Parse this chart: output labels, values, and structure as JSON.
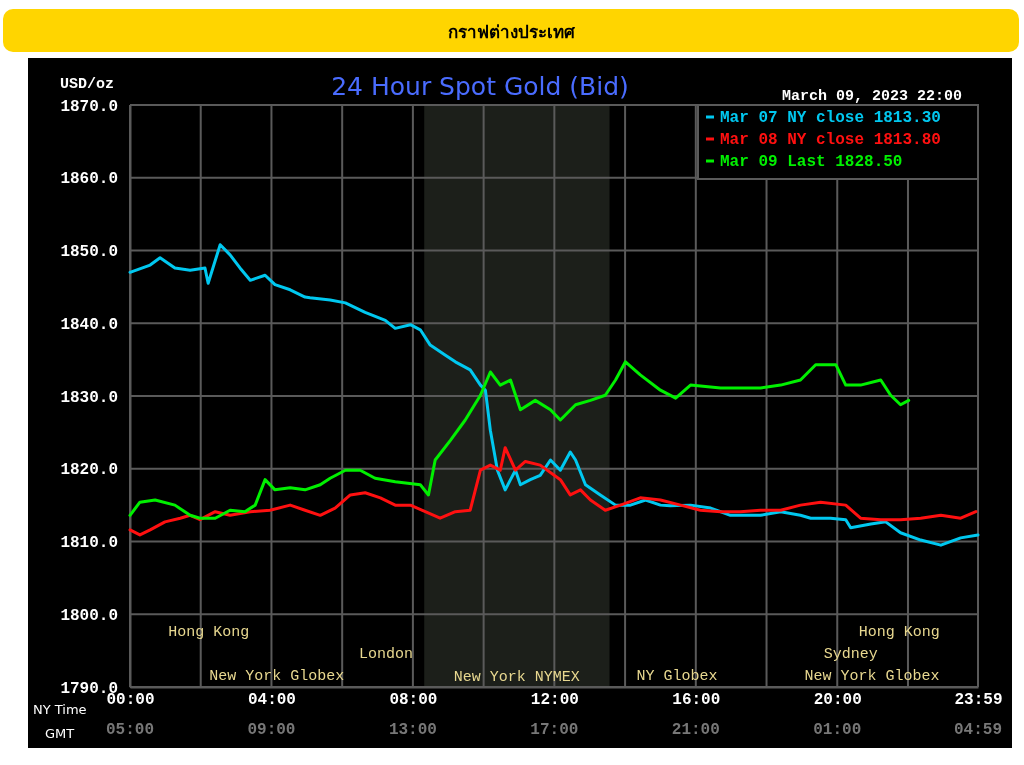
{
  "chart_data": {
    "type": "line",
    "title": "24 Hour Spot Gold (Bid)",
    "ylabel": "USD/oz",
    "xlabel": "NY Time",
    "x2label": "GMT",
    "annotations": [
      "กราฟต่างประเทศ",
      "March 09, 2023 22:00",
      "05:00",
      "09:00",
      "13:00",
      "17:00",
      "21:00",
      "01:00",
      "04:59",
      "Hong Kong",
      "Hong Kong",
      "London",
      "Sydney",
      "New York Globex",
      "NY Globex",
      "New York Globex"
    ],
    "xlim": [
      0,
      23.98
    ],
    "xticks": [
      {
        "value": 0,
        "label": "00:00"
      },
      {
        "value": 2,
        "label": null
      },
      {
        "value": 4,
        "label": "04:00"
      },
      {
        "value": 6,
        "label": null
      },
      {
        "value": 8,
        "label": "08:00"
      },
      {
        "value": 10,
        "label": null
      },
      {
        "value": 12,
        "label": "12:00"
      },
      {
        "value": 14,
        "label": null
      },
      {
        "value": 16,
        "label": "16:00"
      },
      {
        "value": 18,
        "label": null
      },
      {
        "value": 20,
        "label": "20:00"
      },
      {
        "value": 22,
        "label": null
      },
      {
        "value": 23.98,
        "label": "23:59"
      }
    ],
    "ylim": [
      1790,
      1870
    ],
    "yticks": [
      {
        "value": 1790,
        "label": "1790.0"
      },
      {
        "value": 1800,
        "label": "1800.0"
      },
      {
        "value": 1810,
        "label": "1810.0"
      },
      {
        "value": 1820,
        "label": "1820.0"
      },
      {
        "value": 1830,
        "label": "1830.0"
      },
      {
        "value": 1840,
        "label": "1840.0"
      },
      {
        "value": 1850,
        "label": "1850.0"
      },
      {
        "value": 1860,
        "label": "1860.0"
      },
      {
        "value": 1870,
        "label": "1870.0"
      }
    ],
    "grid": true,
    "legend": "top right",
    "bands": [
      {
        "axis": "x",
        "from": 8.32,
        "to": 13.56,
        "label": "New York NYMEX",
        "color": "#1c1f1a"
      }
    ],
    "series": [
      {
        "name": "Mar 07 NY close 1813.30",
        "color": "#00c8f0",
        "x": [
          0,
          0.57,
          0.85,
          1.27,
          1.7,
          2.12,
          2.21,
          2.55,
          2.83,
          3.11,
          3.4,
          3.82,
          4.1,
          4.53,
          4.95,
          5.09,
          5.66,
          6.09,
          6.65,
          7.22,
          7.5,
          7.93,
          8.21,
          8.49,
          8.92,
          9.2,
          9.62,
          9.91,
          10.05,
          10.19,
          10.39,
          10.61,
          10.76,
          10.9,
          11.04,
          11.32,
          11.6,
          11.89,
          12.17,
          12.45,
          12.6,
          12.88,
          13.3,
          13.73,
          14.15,
          14.58,
          15,
          15.28,
          15.85,
          16.42,
          16.98,
          17.83,
          18.4,
          18.96,
          19.25,
          19.81,
          20.24,
          20.38,
          20.95,
          21.37,
          21.79,
          22.36,
          22.93,
          23.49,
          23.98
        ],
        "values": [
          1847.0,
          1848.0,
          1849.0,
          1847.6,
          1847.3,
          1847.6,
          1845.5,
          1850.8,
          1849.4,
          1847.6,
          1845.9,
          1846.6,
          1845.3,
          1844.6,
          1843.6,
          1843.5,
          1843.2,
          1842.8,
          1841.5,
          1840.4,
          1839.3,
          1839.8,
          1839.1,
          1837.0,
          1835.6,
          1834.7,
          1833.6,
          1831.5,
          1830.8,
          1825.3,
          1819.8,
          1817.1,
          1818.5,
          1819.8,
          1817.8,
          1818.5,
          1819.1,
          1821.2,
          1819.8,
          1822.3,
          1821.2,
          1817.8,
          1816.4,
          1815.0,
          1815.0,
          1815.7,
          1815.0,
          1814.9,
          1815.0,
          1814.6,
          1813.6,
          1813.6,
          1814.1,
          1813.6,
          1813.2,
          1813.2,
          1813.0,
          1811.9,
          1812.4,
          1812.7,
          1811.2,
          1810.2,
          1809.5,
          1810.5,
          1810.9
        ]
      },
      {
        "name": "Mar 08 NY close 1813.80",
        "color": "#ff1010",
        "x": [
          0,
          0.28,
          0.57,
          0.99,
          1.42,
          1.7,
          1.98,
          2.41,
          2.83,
          3.4,
          3.96,
          4.53,
          4.95,
          5.38,
          5.8,
          6.23,
          6.65,
          7.08,
          7.5,
          7.93,
          8.35,
          8.77,
          9.2,
          9.62,
          9.91,
          10.19,
          10.47,
          10.61,
          10.9,
          11.18,
          11.6,
          12.17,
          12.45,
          12.74,
          13.02,
          13.44,
          13.87,
          14.43,
          15,
          15.57,
          16.13,
          16.7,
          17.26,
          17.83,
          18.4,
          18.96,
          19.53,
          20.24,
          20.66,
          21.23,
          21.79,
          22.36,
          22.93,
          23.49,
          23.92
        ],
        "values": [
          1811.6,
          1810.9,
          1811.6,
          1812.7,
          1813.2,
          1813.6,
          1813.0,
          1814.1,
          1813.6,
          1814.1,
          1814.3,
          1815.0,
          1814.3,
          1813.6,
          1814.6,
          1816.4,
          1816.7,
          1816.0,
          1815.0,
          1815.0,
          1814.1,
          1813.2,
          1814.1,
          1814.3,
          1819.8,
          1820.5,
          1819.8,
          1822.9,
          1819.8,
          1821.0,
          1820.5,
          1818.5,
          1816.4,
          1817.1,
          1815.7,
          1814.3,
          1815.0,
          1816.0,
          1815.7,
          1815.0,
          1814.3,
          1814.1,
          1814.1,
          1814.3,
          1814.3,
          1815.0,
          1815.4,
          1815.0,
          1813.2,
          1813.0,
          1813.0,
          1813.2,
          1813.6,
          1813.2,
          1814.1
        ]
      },
      {
        "name": "Mar 09 Last 1828.50",
        "color": "#00f000",
        "x": [
          0,
          0.28,
          0.71,
          1.27,
          1.7,
          1.98,
          2.41,
          2.83,
          3.25,
          3.54,
          3.82,
          4.1,
          4.53,
          4.95,
          5.38,
          5.66,
          6.09,
          6.51,
          6.93,
          7.5,
          8.21,
          8.44,
          8.63,
          9.06,
          9.48,
          9.91,
          10.19,
          10.47,
          10.76,
          11.04,
          11.46,
          11.89,
          12.17,
          12.6,
          13.02,
          13.44,
          13.73,
          14.01,
          14.43,
          15,
          15.43,
          15.85,
          16.7,
          17.83,
          18.4,
          18.96,
          19.39,
          19.96,
          20.24,
          20.66,
          21.23,
          21.51,
          21.79,
          22.02
        ],
        "values": [
          1813.6,
          1815.4,
          1815.7,
          1815.0,
          1813.6,
          1813.2,
          1813.2,
          1814.3,
          1814.1,
          1815.0,
          1818.5,
          1817.1,
          1817.4,
          1817.1,
          1817.8,
          1818.7,
          1819.8,
          1819.8,
          1818.7,
          1818.2,
          1817.8,
          1816.4,
          1821.2,
          1823.9,
          1826.7,
          1830.1,
          1833.3,
          1831.5,
          1832.2,
          1828.1,
          1829.4,
          1828.1,
          1826.7,
          1828.8,
          1829.4,
          1830.1,
          1832.2,
          1834.7,
          1832.9,
          1830.8,
          1829.7,
          1831.5,
          1831.1,
          1831.1,
          1831.5,
          1832.2,
          1834.3,
          1834.3,
          1831.5,
          1831.5,
          1832.2,
          1830.1,
          1828.8,
          1829.4
        ]
      }
    ]
  }
}
